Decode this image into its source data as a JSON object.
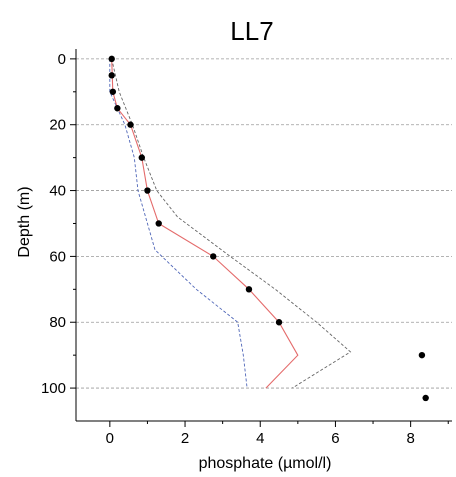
{
  "chart_data": {
    "type": "line",
    "title": "LL7",
    "xlabel": "phosphate (µmol/l)",
    "ylabel": "Depth (m)",
    "xlim": [
      -0.9,
      9.1
    ],
    "ylim": [
      110,
      -3
    ],
    "y_inverted": true,
    "x_ticks": [
      0,
      2,
      4,
      6,
      8
    ],
    "y_ticks": [
      0,
      20,
      40,
      60,
      80,
      100
    ],
    "grid": "horizontal-dashed",
    "observed_points": {
      "x": [
        0.05,
        0.05,
        0.08,
        0.2,
        0.55,
        0.85,
        1.0,
        1.3,
        2.75,
        3.7,
        4.5,
        8.3,
        8.4
      ],
      "y": [
        0,
        5,
        10,
        15,
        20,
        30,
        40,
        50,
        60,
        70,
        80,
        90,
        103
      ],
      "color": "#000000"
    },
    "model_line": {
      "x": [
        0.05,
        0.08,
        0.2,
        0.55,
        0.85,
        1.0,
        1.3,
        2.75,
        3.7,
        4.5,
        5.0,
        4.15
      ],
      "y": [
        0,
        10,
        15,
        20,
        30,
        40,
        50,
        60,
        70,
        80,
        90,
        100
      ],
      "color": "#e46b6b"
    },
    "upper_bound": {
      "x": [
        0.05,
        0.25,
        0.6,
        0.9,
        1.25,
        1.8,
        3.2,
        4.4,
        5.5,
        6.4,
        4.85
      ],
      "y": [
        0,
        10,
        20,
        30,
        40,
        48,
        60,
        70,
        80,
        89,
        100
      ],
      "color": "#666666"
    },
    "lower_bound": {
      "x": [
        0.0,
        0.0,
        0.4,
        0.65,
        0.75,
        1.2,
        2.3,
        3.4,
        3.55,
        3.65
      ],
      "y": [
        0,
        10,
        20,
        30,
        40,
        58,
        70,
        80,
        90,
        100
      ],
      "color": "#4f66b8"
    }
  }
}
